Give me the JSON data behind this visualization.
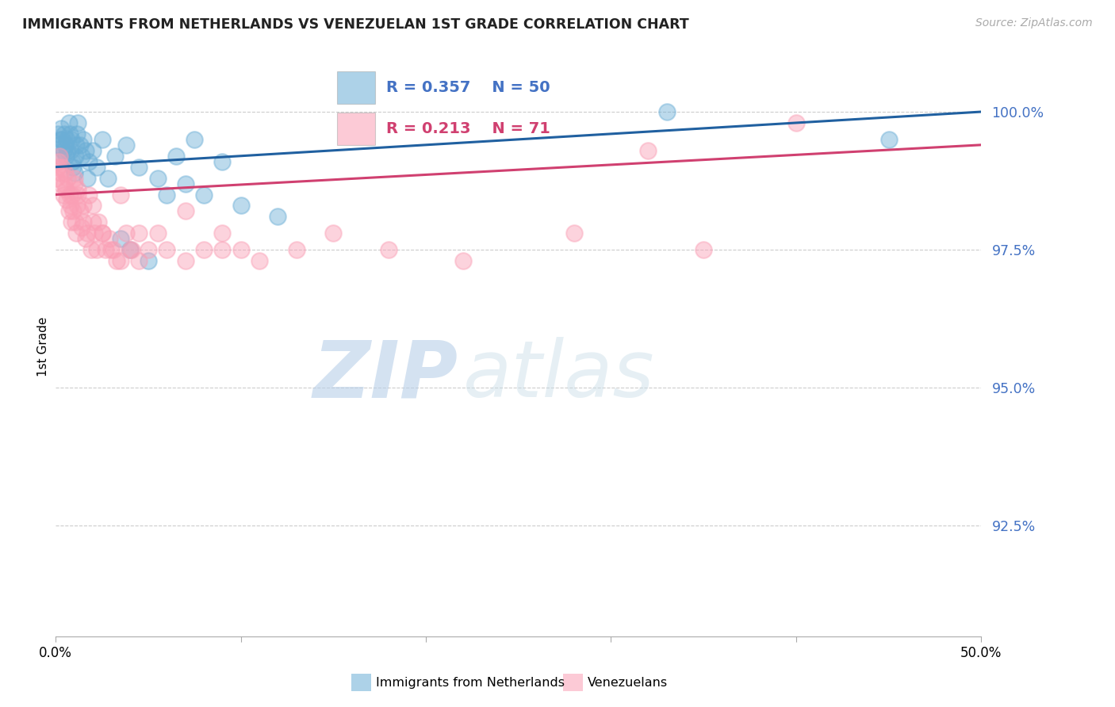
{
  "title": "IMMIGRANTS FROM NETHERLANDS VS VENEZUELAN 1ST GRADE CORRELATION CHART",
  "source": "Source: ZipAtlas.com",
  "ylabel": "1st Grade",
  "xlim": [
    0.0,
    50.0
  ],
  "ylim": [
    90.5,
    101.0
  ],
  "yticks": [
    92.5,
    95.0,
    97.5,
    100.0
  ],
  "ytick_labels": [
    "92.5%",
    "95.0%",
    "97.5%",
    "100.0%"
  ],
  "xticks": [
    0.0,
    10.0,
    20.0,
    30.0,
    40.0,
    50.0
  ],
  "xtick_labels": [
    "0.0%",
    "",
    "",
    "",
    "",
    "50.0%"
  ],
  "blue_R": 0.357,
  "blue_N": 50,
  "pink_R": 0.213,
  "pink_N": 71,
  "blue_color": "#6baed6",
  "pink_color": "#fa9fb5",
  "blue_line_color": "#2060a0",
  "pink_line_color": "#d04070",
  "blue_label": "Immigrants from Netherlands",
  "pink_label": "Venezuelans",
  "watermark_zip": "ZIP",
  "watermark_atlas": "atlas",
  "blue_x": [
    0.1,
    0.15,
    0.2,
    0.25,
    0.3,
    0.35,
    0.4,
    0.45,
    0.5,
    0.55,
    0.6,
    0.65,
    0.7,
    0.75,
    0.8,
    0.85,
    0.9,
    0.95,
    1.0,
    1.05,
    1.1,
    1.15,
    1.2,
    1.3,
    1.4,
    1.5,
    1.6,
    1.7,
    1.8,
    2.0,
    2.2,
    2.5,
    2.8,
    3.2,
    3.8,
    4.5,
    5.5,
    6.5,
    7.5,
    9.0,
    3.5,
    4.0,
    5.0,
    6.0,
    7.0,
    8.0,
    10.0,
    12.0,
    33.0,
    45.0
  ],
  "blue_y": [
    99.6,
    99.4,
    99.2,
    99.5,
    99.7,
    99.5,
    99.3,
    99.6,
    99.4,
    99.2,
    99.5,
    99.3,
    99.8,
    99.6,
    99.3,
    99.5,
    99.1,
    99.0,
    98.9,
    99.2,
    99.4,
    99.6,
    99.8,
    99.4,
    99.2,
    99.5,
    99.3,
    98.8,
    99.1,
    99.3,
    99.0,
    99.5,
    98.8,
    99.2,
    99.4,
    99.0,
    98.8,
    99.2,
    99.5,
    99.1,
    97.7,
    97.5,
    97.3,
    98.5,
    98.7,
    98.5,
    98.3,
    98.1,
    100.0,
    99.5
  ],
  "pink_x": [
    0.05,
    0.1,
    0.15,
    0.2,
    0.25,
    0.3,
    0.35,
    0.4,
    0.45,
    0.5,
    0.55,
    0.6,
    0.65,
    0.7,
    0.75,
    0.8,
    0.85,
    0.9,
    0.95,
    1.0,
    1.05,
    1.1,
    1.15,
    1.2,
    1.3,
    1.4,
    1.5,
    1.6,
    1.7,
    1.8,
    1.9,
    2.0,
    2.1,
    2.2,
    2.3,
    2.5,
    2.7,
    2.9,
    3.1,
    3.3,
    3.5,
    3.8,
    4.1,
    4.5,
    5.0,
    5.5,
    6.0,
    7.0,
    8.0,
    9.0,
    10.0,
    11.0,
    13.0,
    15.0,
    18.0,
    22.0,
    28.0,
    35.0,
    1.0,
    1.2,
    1.5,
    2.0,
    2.5,
    3.0,
    3.5,
    4.0,
    4.5,
    7.0,
    9.0,
    32.0,
    40.0
  ],
  "pink_y": [
    98.8,
    99.0,
    99.1,
    99.2,
    98.9,
    98.7,
    99.0,
    98.5,
    98.7,
    98.9,
    98.6,
    98.4,
    98.8,
    98.2,
    98.5,
    98.3,
    98.0,
    98.5,
    98.2,
    98.7,
    98.0,
    97.8,
    98.3,
    98.5,
    98.2,
    97.9,
    98.0,
    97.7,
    97.8,
    98.5,
    97.5,
    98.3,
    97.8,
    97.5,
    98.0,
    97.8,
    97.5,
    97.7,
    97.5,
    97.3,
    98.5,
    97.8,
    97.5,
    97.3,
    97.5,
    97.8,
    97.5,
    97.3,
    97.5,
    97.8,
    97.5,
    97.3,
    97.5,
    97.8,
    97.5,
    97.3,
    97.8,
    97.5,
    98.8,
    98.6,
    98.3,
    98.0,
    97.8,
    97.5,
    97.3,
    97.5,
    97.8,
    98.2,
    97.5,
    99.3,
    99.8
  ]
}
